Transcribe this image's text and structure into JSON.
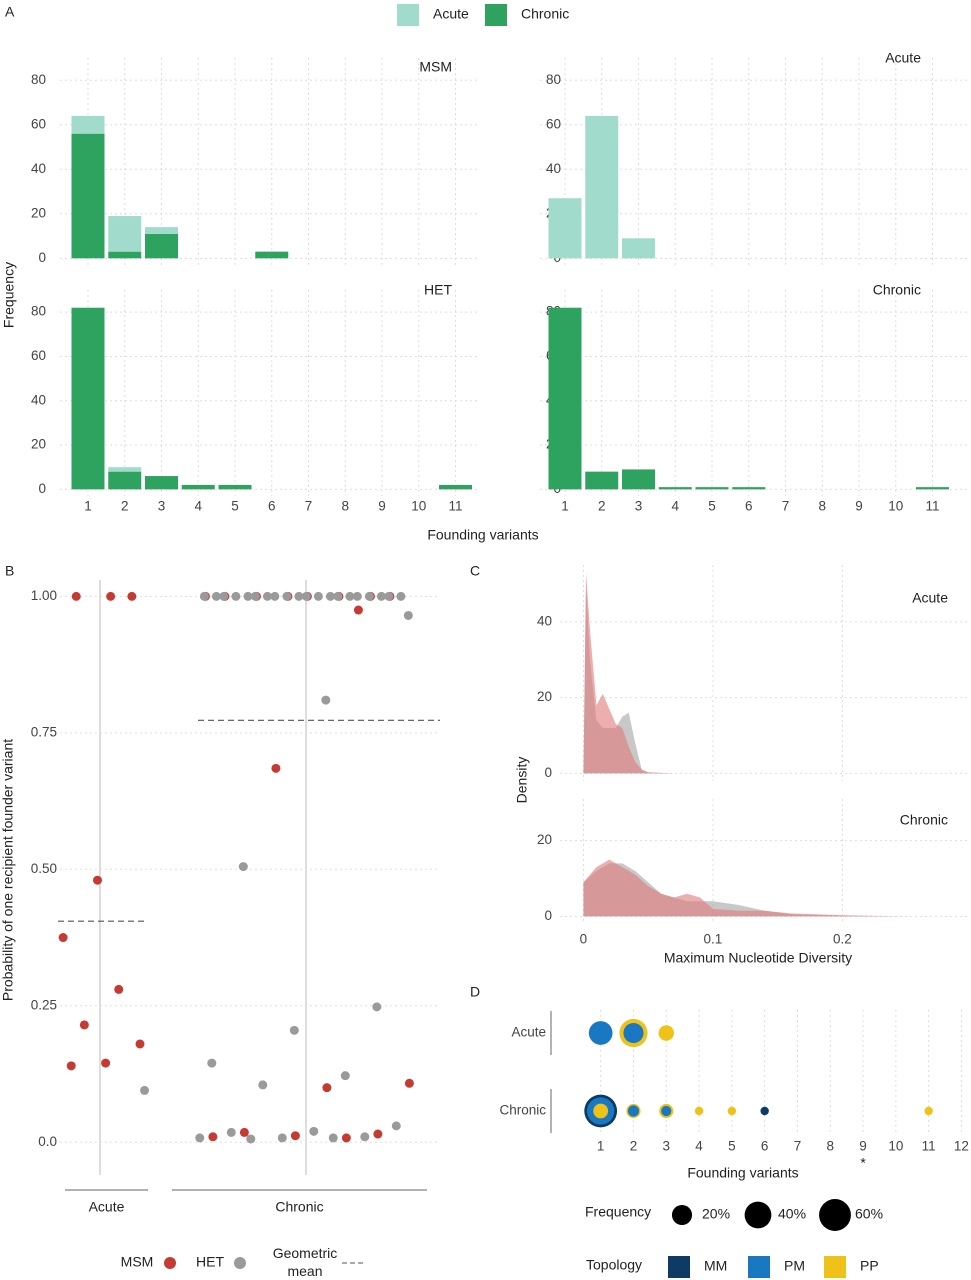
{
  "chart_data": [
    {
      "type": "bar",
      "panel": "A",
      "stacked": true,
      "legend": [
        {
          "name": "Acute",
          "color": "#a1dbcb"
        },
        {
          "name": "Chronic",
          "color": "#2ea360"
        }
      ],
      "ylabel": "Frequency",
      "xlabel": "Founding variants",
      "categories": [
        1,
        2,
        3,
        4,
        5,
        6,
        7,
        8,
        9,
        10,
        11
      ],
      "ylim": [
        -3,
        90
      ],
      "yticks": [
        0,
        20,
        40,
        60,
        80
      ],
      "grid": true,
      "facets": [
        {
          "title": "MSM",
          "series": [
            {
              "color": "#2ea360",
              "values": [
                56,
                3,
                11,
                0,
                0,
                3,
                0,
                0,
                0,
                0,
                0
              ]
            },
            {
              "color": "#a1dbcb",
              "values": [
                8,
                16,
                3,
                0,
                0,
                0,
                0,
                0,
                0,
                0,
                0
              ]
            }
          ]
        },
        {
          "title": "HET",
          "series": [
            {
              "color": "#2ea360",
              "values": [
                82,
                8,
                6,
                2,
                2,
                0,
                0,
                0,
                0,
                0,
                2
              ]
            },
            {
              "color": "#a1dbcb",
              "values": [
                0,
                2,
                0,
                0,
                0,
                0,
                0,
                0,
                0,
                0,
                0
              ]
            }
          ]
        },
        {
          "title": "Acute",
          "series": [
            {
              "color": "#a1dbcb",
              "values": [
                27,
                64,
                9,
                0,
                0,
                0,
                0,
                0,
                0,
                0,
                0
              ]
            }
          ]
        },
        {
          "title": "Chronic",
          "series": [
            {
              "color": "#2ea360",
              "values": [
                82,
                8,
                9,
                1,
                1,
                1,
                0,
                0,
                0,
                0,
                1
              ]
            }
          ]
        }
      ]
    },
    {
      "type": "strip",
      "panel": "B",
      "ylabel": "Probability of one recipient founder variant",
      "categories": [
        "Acute",
        "Chronic"
      ],
      "ylim": [
        -0.06,
        1.03
      ],
      "yticks": [
        {
          "value": 0,
          "label": "0.0"
        },
        0.25,
        {
          "value": 0.5,
          "label": "0.50"
        },
        0.75,
        {
          "value": 1,
          "label": "1.00"
        }
      ],
      "grid": true,
      "series": [
        {
          "name": "MSM",
          "color": "#c53a32",
          "x": [
            "Acute",
            "Acute",
            "Acute",
            "Acute",
            "Acute",
            "Acute",
            "Acute",
            "Acute",
            "Acute",
            "Acute",
            "Chronic",
            "Chronic",
            "Chronic",
            "Chronic",
            "Chronic",
            "Chronic",
            "Chronic",
            "Chronic",
            "Chronic",
            "Chronic",
            "Chronic",
            "Chronic",
            "Chronic",
            "Chronic",
            "Chronic",
            "Chronic",
            "Chronic"
          ],
          "values": [
            1,
            1,
            1,
            0.48,
            0.375,
            0.28,
            0.215,
            0.18,
            0.145,
            0.14,
            1,
            1,
            1,
            1,
            1,
            1,
            1,
            1,
            0.975,
            0.685,
            0.108,
            0.1,
            0.018,
            0.015,
            0.012,
            0.01,
            0.008
          ]
        },
        {
          "name": "HET",
          "color": "#9a9a9a",
          "x": [
            "Acute",
            "Chronic",
            "Chronic",
            "Chronic",
            "Chronic",
            "Chronic",
            "Chronic",
            "Chronic",
            "Chronic",
            "Chronic",
            "Chronic",
            "Chronic",
            "Chronic",
            "Chronic",
            "Chronic",
            "Chronic",
            "Chronic",
            "Chronic",
            "Chronic",
            "Chronic",
            "Chronic",
            "Chronic",
            "Chronic",
            "Chronic",
            "Chronic",
            "Chronic",
            "Chronic",
            "Chronic",
            "Chronic",
            "Chronic",
            "Chronic",
            "Chronic",
            "Chronic",
            "Chronic",
            "Chronic",
            "Chronic",
            "Chronic"
          ],
          "values": [
            0.095,
            1,
            1,
            1,
            1,
            1,
            1,
            1,
            1,
            1,
            1,
            1,
            1,
            1,
            1,
            1,
            1,
            1,
            1,
            1,
            1,
            0.965,
            0.81,
            0.505,
            0.248,
            0.205,
            0.145,
            0.122,
            0.105,
            0.03,
            0.02,
            0.018,
            0.01,
            0.008,
            0.008,
            0.008,
            0.006
          ]
        }
      ],
      "geometric_mean": {
        "name": "Geometric mean",
        "values": [
          0.405,
          0.773
        ]
      }
    },
    {
      "type": "density",
      "panel": "C",
      "xlabel": "Maximum Nucleotide Diversity",
      "ylabel": "Density",
      "xlim": [
        -0.049,
        0.297
      ],
      "xticks": [
        0,
        0.1,
        0.2
      ],
      "grid": true,
      "facets": [
        {
          "title": "Acute",
          "ylim": [
            -2,
            55
          ],
          "yticks": [
            0,
            20,
            40
          ],
          "x": [
            0,
            0.002,
            0.005,
            0.01,
            0.015,
            0.02,
            0.025,
            0.03,
            0.035,
            0.04,
            0.045,
            0.05,
            0.07
          ],
          "series": [
            {
              "color": "#a3a3a3",
              "values": [
                0,
                50,
                30,
                14,
                12,
                12,
                12,
                15,
                16,
                8,
                1,
                0.2,
                0
              ]
            },
            {
              "color": "#e0787a",
              "values": [
                0,
                53,
                38,
                18,
                21,
                17,
                13,
                12,
                7,
                3,
                1,
                0.3,
                0
              ]
            }
          ]
        },
        {
          "title": "Chronic",
          "ylim": [
            -2,
            31
          ],
          "yticks": [
            0,
            20
          ],
          "x": [
            0,
            0.01,
            0.02,
            0.03,
            0.04,
            0.05,
            0.06,
            0.07,
            0.08,
            0.09,
            0.1,
            0.12,
            0.14,
            0.16,
            0.2,
            0.25
          ],
          "series": [
            {
              "color": "#a3a3a3",
              "values": [
                9,
                12,
                14,
                14,
                12,
                9,
                6,
                5,
                4,
                4,
                4,
                3,
                1.5,
                0.6,
                0.2,
                0
              ]
            },
            {
              "color": "#e0787a",
              "values": [
                9,
                13,
                15,
                13,
                11,
                8,
                6,
                5,
                6,
                5,
                2,
                1.5,
                1.5,
                0.8,
                0.3,
                0
              ]
            }
          ]
        }
      ]
    },
    {
      "type": "bubble",
      "panel": "D",
      "xlabel": "Founding variants",
      "categories": [
        "Acute",
        "Chronic"
      ],
      "xlim": [
        0.4,
        12.2
      ],
      "xticks": [
        1,
        2,
        3,
        4,
        5,
        6,
        7,
        8,
        9,
        10,
        11,
        12
      ],
      "grid": true,
      "annotations": [
        {
          "text": "*",
          "x": 9
        }
      ],
      "series": [
        {
          "name": "MM",
          "color": "#0d3b63",
          "x": [
            1,
            6
          ],
          "y": [
            "Chronic",
            "Chronic"
          ],
          "sizes": [
            64,
            1.5
          ]
        },
        {
          "name": "PM",
          "color": "#1a78c2",
          "x": [
            1,
            2,
            1,
            2,
            3
          ],
          "y": [
            "Acute",
            "Acute",
            "Chronic",
            "Chronic",
            "Chronic"
          ],
          "sizes": [
            30,
            20,
            42,
            4,
            3
          ]
        },
        {
          "name": "PP",
          "color": "#efc21a",
          "x": [
            2,
            3,
            1,
            2,
            3,
            4,
            5,
            11
          ],
          "y": [
            "Acute",
            "Acute",
            "Chronic",
            "Chronic",
            "Chronic",
            "Chronic",
            "Chronic",
            "Chronic"
          ],
          "sizes": [
            45,
            10,
            9,
            8,
            8,
            1.5,
            1.5,
            1.5
          ]
        }
      ],
      "size_legend": {
        "title": "Frequency",
        "values": [
          20,
          40,
          60
        ],
        "value_labels": [
          "20%",
          "40%",
          "60%"
        ]
      },
      "color_legend_title": "Topology"
    }
  ]
}
